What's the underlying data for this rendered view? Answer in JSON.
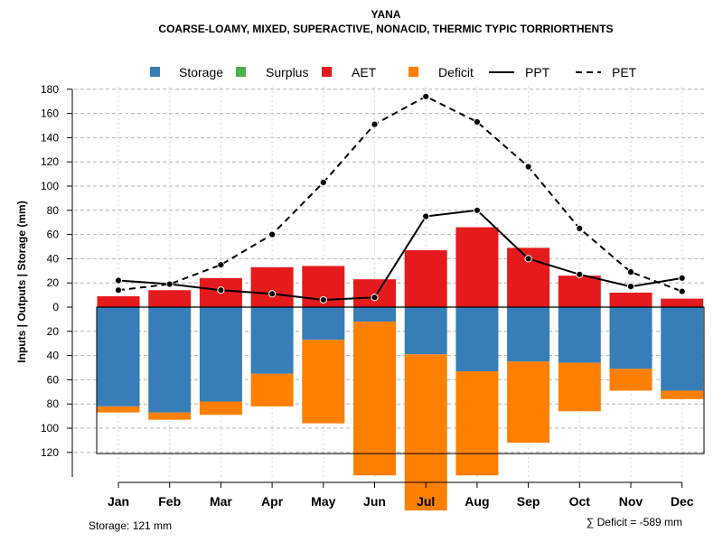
{
  "chart_data": {
    "type": "bar",
    "title": "YANA",
    "subtitle": "COARSE-LOAMY, MIXED, SUPERACTIVE, NONACID, THERMIC TYPIC TORRIORTHENTS",
    "ylabel": "Inputs | Outputs | Storage    (mm)",
    "categories": [
      "Jan",
      "Feb",
      "Mar",
      "Apr",
      "May",
      "Jun",
      "Jul",
      "Aug",
      "Sep",
      "Oct",
      "Nov",
      "Dec"
    ],
    "highlight_month": "Jul",
    "ylim": [
      -140,
      180
    ],
    "yticks": [
      180,
      160,
      140,
      120,
      100,
      80,
      60,
      40,
      20,
      0,
      -20,
      -40,
      -60,
      -80,
      -100,
      -120
    ],
    "ytick_labels": [
      "180",
      "160",
      "140",
      "120",
      "100",
      "80",
      "60",
      "40",
      "20",
      "0",
      "20",
      "40",
      "60",
      "80",
      "100",
      "120"
    ],
    "storage_capacity": 121,
    "legend": [
      {
        "label": "Storage",
        "kind": "box",
        "color": "#377EB8"
      },
      {
        "label": "Surplus",
        "kind": "box",
        "color": "#4DAF4A"
      },
      {
        "label": "AET",
        "kind": "box",
        "color": "#E41A1C"
      },
      {
        "label": "Deficit",
        "kind": "box",
        "color": "#FF7F00"
      },
      {
        "label": "PPT",
        "kind": "solid"
      },
      {
        "label": "PET",
        "kind": "dashed"
      }
    ],
    "series": [
      {
        "name": "AET",
        "values": [
          9,
          14,
          24,
          33,
          34,
          23,
          47,
          66,
          49,
          26,
          12,
          7
        ],
        "color": "#E41A1C"
      },
      {
        "name": "Storage",
        "values": [
          82,
          87,
          78,
          55,
          27,
          12,
          39,
          53,
          45,
          46,
          51,
          69
        ],
        "color": "#377EB8"
      },
      {
        "name": "Deficit",
        "values": [
          5,
          6,
          11,
          27,
          69,
          127,
          129,
          86,
          67,
          40,
          18,
          7
        ],
        "color": "#FF7F00"
      },
      {
        "name": "Surplus",
        "values": [
          0,
          0,
          0,
          0,
          0,
          0,
          0,
          0,
          0,
          0,
          0,
          0
        ],
        "color": "#4DAF4A"
      },
      {
        "name": "PPT",
        "values": [
          22,
          19,
          14,
          11,
          6,
          8,
          75,
          80,
          40,
          27,
          17,
          24
        ]
      },
      {
        "name": "PET",
        "values": [
          14,
          19,
          35,
          60,
          103,
          151,
          174,
          153,
          116,
          65,
          29,
          13
        ]
      }
    ]
  },
  "footer": {
    "storage_note": "Storage: 121 mm",
    "deficit_note": "∑ Deficit = -589 mm"
  }
}
